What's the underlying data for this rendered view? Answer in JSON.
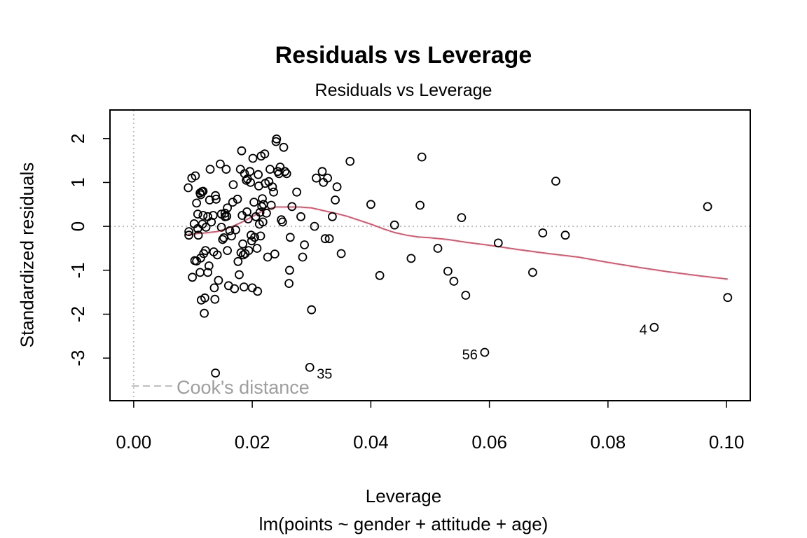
{
  "chart_data": {
    "type": "scatter",
    "title": "Residuals vs Leverage",
    "subtitle": "Residuals vs Leverage",
    "xlabel": "Leverage",
    "ylabel": "Standardized residuals",
    "caption": "lm(points ~ gender + attitude + age)",
    "xlim": [
      -0.004,
      0.104
    ],
    "ylim": [
      -3.97,
      2.65
    ],
    "xticks": [
      "0.00",
      "0.02",
      "0.04",
      "0.06",
      "0.08",
      "0.10"
    ],
    "xtick_values": [
      0,
      0.02,
      0.04,
      0.06,
      0.08,
      0.1
    ],
    "yticks": [
      "-3",
      "-2",
      "-1",
      "0",
      "1",
      "2"
    ],
    "ytick_values": [
      -3,
      -2,
      -1,
      0,
      1,
      2
    ],
    "legend": {
      "label": "Cook's distance",
      "placement": "bottom-left"
    },
    "colors": {
      "points": "#000000",
      "smooth": "#DF536B",
      "reference": "#BEBEBE",
      "legend_text": "#9E9E9E"
    },
    "labeled_points": [
      {
        "label": "35",
        "x": 0.0297,
        "y": -3.21
      },
      {
        "label": "56",
        "x": 0.0592,
        "y": -2.87
      },
      {
        "label": "4",
        "x": 0.0878,
        "y": -2.3
      }
    ],
    "points": [
      [
        0.0092,
        0.88
      ],
      [
        0.0098,
        1.1
      ],
      [
        0.0093,
        -0.12
      ],
      [
        0.0093,
        -0.2
      ],
      [
        0.0099,
        -1.16
      ],
      [
        0.0102,
        0.06
      ],
      [
        0.0104,
        1.15
      ],
      [
        0.0103,
        -0.78
      ],
      [
        0.0106,
        -0.79
      ],
      [
        0.0106,
        0.53
      ],
      [
        0.0108,
        0.28
      ],
      [
        0.0108,
        -0.05
      ],
      [
        0.0109,
        -0.2
      ],
      [
        0.0112,
        0.76
      ],
      [
        0.0113,
        0.72
      ],
      [
        0.0113,
        -0.72
      ],
      [
        0.0112,
        -1.05
      ],
      [
        0.0114,
        -1.68
      ],
      [
        0.0115,
        0.79
      ],
      [
        0.0117,
        0.8
      ],
      [
        0.0117,
        0.25
      ],
      [
        0.0116,
        0.05
      ],
      [
        0.0118,
        -0.62
      ],
      [
        0.0119,
        -1.98
      ],
      [
        0.0121,
        -0.55
      ],
      [
        0.012,
        -1.63
      ],
      [
        0.0122,
        -0.02
      ],
      [
        0.0125,
        0.22
      ],
      [
        0.0125,
        -1.05
      ],
      [
        0.0127,
        -0.9
      ],
      [
        0.0129,
        1.3
      ],
      [
        0.0128,
        0.6
      ],
      [
        0.0131,
        0.1
      ],
      [
        0.0134,
        0.25
      ],
      [
        0.0135,
        -0.58
      ],
      [
        0.0136,
        -1.4
      ],
      [
        0.0137,
        -1.66
      ],
      [
        0.0138,
        -3.34
      ],
      [
        0.0138,
        0.7
      ],
      [
        0.0139,
        0.62
      ],
      [
        0.0141,
        -0.65
      ],
      [
        0.0143,
        -1.23
      ],
      [
        0.0146,
        1.42
      ],
      [
        0.0148,
        0.28
      ],
      [
        0.0148,
        -0.02
      ],
      [
        0.015,
        -0.3
      ],
      [
        0.0152,
        -0.26
      ],
      [
        0.0154,
        0.3
      ],
      [
        0.0154,
        0.22
      ],
      [
        0.0156,
        1.3
      ],
      [
        0.0157,
        0.23
      ],
      [
        0.0158,
        0.42
      ],
      [
        0.0158,
        -0.55
      ],
      [
        0.016,
        -1.35
      ],
      [
        0.0162,
        -0.1
      ],
      [
        0.0165,
        -0.22
      ],
      [
        0.0167,
        0.55
      ],
      [
        0.0168,
        0.95
      ],
      [
        0.017,
        -1.42
      ],
      [
        0.0172,
        -0.08
      ],
      [
        0.0175,
        0.62
      ],
      [
        0.0176,
        -0.8
      ],
      [
        0.0178,
        -1.1
      ],
      [
        0.018,
        1.3
      ],
      [
        0.0181,
        -0.6
      ],
      [
        0.0182,
        1.72
      ],
      [
        0.0183,
        0.25
      ],
      [
        0.0184,
        -0.4
      ],
      [
        0.0185,
        -0.65
      ],
      [
        0.0186,
        -1.38
      ],
      [
        0.0187,
        1.2
      ],
      [
        0.0188,
        -0.62
      ],
      [
        0.019,
        1.05
      ],
      [
        0.0191,
        0.33
      ],
      [
        0.0192,
        1.08
      ],
      [
        0.0193,
        0.17
      ],
      [
        0.0194,
        -0.55
      ],
      [
        0.0196,
        1.25
      ],
      [
        0.0197,
        1.0
      ],
      [
        0.0198,
        -0.2
      ],
      [
        0.0199,
        -0.33
      ],
      [
        0.02,
        -1.4
      ],
      [
        0.0201,
        1.55
      ],
      [
        0.0203,
        0.55
      ],
      [
        0.0204,
        -0.25
      ],
      [
        0.0206,
        0.22
      ],
      [
        0.0208,
        -0.5
      ],
      [
        0.0209,
        -1.48
      ],
      [
        0.021,
        1.18
      ],
      [
        0.0211,
        0.92
      ],
      [
        0.0212,
        0.05
      ],
      [
        0.0213,
        0.32
      ],
      [
        0.0214,
        -0.22
      ],
      [
        0.0215,
        1.6
      ],
      [
        0.0216,
        0.45
      ],
      [
        0.0217,
        0.63
      ],
      [
        0.0218,
        0.1
      ],
      [
        0.0219,
        0.5
      ],
      [
        0.0221,
        1.65
      ],
      [
        0.0222,
        0.98
      ],
      [
        0.0224,
        0.3
      ],
      [
        0.0226,
        -0.7
      ],
      [
        0.0228,
        1.02
      ],
      [
        0.023,
        1.3
      ],
      [
        0.0232,
        0.48
      ],
      [
        0.0234,
        0.9
      ],
      [
        0.0236,
        0.78
      ],
      [
        0.0238,
        -0.63
      ],
      [
        0.024,
        1.93
      ],
      [
        0.0241,
        1.99
      ],
      [
        0.0243,
        1.25
      ],
      [
        0.0245,
        1.2
      ],
      [
        0.0247,
        1.35
      ],
      [
        0.0249,
        0.15
      ],
      [
        0.0251,
        0.1
      ],
      [
        0.0253,
        1.8
      ],
      [
        0.0255,
        1.25
      ],
      [
        0.0258,
        1.2
      ],
      [
        0.0262,
        -1.3
      ],
      [
        0.0263,
        -1.0
      ],
      [
        0.0264,
        -0.25
      ],
      [
        0.0267,
        0.45
      ],
      [
        0.0275,
        0.78
      ],
      [
        0.0282,
        0.22
      ],
      [
        0.0285,
        -0.7
      ],
      [
        0.0288,
        -0.42
      ],
      [
        0.03,
        -1.9
      ],
      [
        0.0305,
        0.0
      ],
      [
        0.0308,
        1.1
      ],
      [
        0.0318,
        1.25
      ],
      [
        0.032,
        1.0
      ],
      [
        0.0323,
        -0.28
      ],
      [
        0.0327,
        1.1
      ],
      [
        0.033,
        -0.28
      ],
      [
        0.0335,
        0.22
      ],
      [
        0.034,
        0.6
      ],
      [
        0.0343,
        0.9
      ],
      [
        0.035,
        -0.62
      ],
      [
        0.0365,
        1.48
      ],
      [
        0.04,
        0.5
      ],
      [
        0.0415,
        -1.12
      ],
      [
        0.044,
        0.03
      ],
      [
        0.0468,
        -0.73
      ],
      [
        0.0483,
        0.48
      ],
      [
        0.0486,
        1.58
      ],
      [
        0.0513,
        -0.5
      ],
      [
        0.053,
        -1.02
      ],
      [
        0.054,
        -1.25
      ],
      [
        0.0553,
        0.2
      ],
      [
        0.056,
        -1.57
      ],
      [
        0.0615,
        -0.38
      ],
      [
        0.0673,
        -1.05
      ],
      [
        0.069,
        -0.15
      ],
      [
        0.0712,
        1.03
      ],
      [
        0.0728,
        -0.2
      ],
      [
        0.0968,
        0.45
      ],
      [
        0.1002,
        -1.62
      ]
    ],
    "smooth": [
      [
        0.0092,
        -0.18
      ],
      [
        0.012,
        -0.15
      ],
      [
        0.014,
        -0.12
      ],
      [
        0.016,
        -0.04
      ],
      [
        0.018,
        0.08
      ],
      [
        0.02,
        0.22
      ],
      [
        0.022,
        0.37
      ],
      [
        0.024,
        0.44
      ],
      [
        0.026,
        0.44
      ],
      [
        0.028,
        0.44
      ],
      [
        0.03,
        0.42
      ],
      [
        0.032,
        0.36
      ],
      [
        0.034,
        0.3
      ],
      [
        0.036,
        0.23
      ],
      [
        0.038,
        0.14
      ],
      [
        0.04,
        0.05
      ],
      [
        0.042,
        -0.05
      ],
      [
        0.044,
        -0.14
      ],
      [
        0.046,
        -0.2
      ],
      [
        0.048,
        -0.24
      ],
      [
        0.05,
        -0.26
      ],
      [
        0.053,
        -0.3
      ],
      [
        0.056,
        -0.36
      ],
      [
        0.06,
        -0.43
      ],
      [
        0.065,
        -0.53
      ],
      [
        0.07,
        -0.62
      ],
      [
        0.075,
        -0.7
      ],
      [
        0.08,
        -0.82
      ],
      [
        0.085,
        -0.93
      ],
      [
        0.09,
        -1.03
      ],
      [
        0.095,
        -1.12
      ],
      [
        0.1002,
        -1.2
      ]
    ]
  }
}
